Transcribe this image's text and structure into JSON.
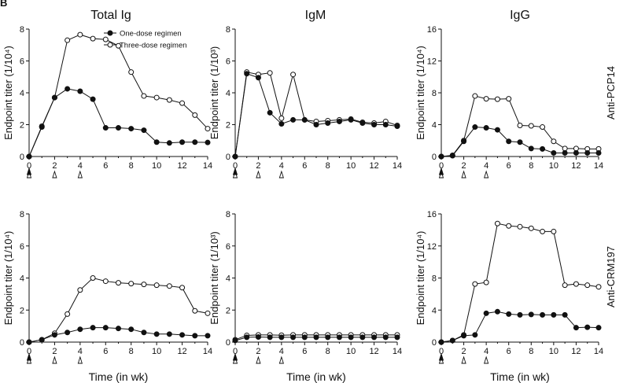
{
  "figure_letter": "B",
  "chart_data": {
    "type": "line",
    "x": [
      0,
      1,
      2,
      3,
      4,
      5,
      6,
      7,
      8,
      9,
      10,
      11,
      12,
      13,
      14
    ],
    "xticks": [
      0,
      2,
      4,
      6,
      8,
      10,
      12,
      14
    ],
    "xlabel": "Time (in wk)",
    "xlim": [
      0,
      14
    ],
    "column_titles": [
      "Total Ig",
      "IgM",
      "IgG"
    ],
    "row_labels": [
      "Anti-PCP14",
      "Anti-CRM197"
    ],
    "legend": [
      "One-dose regimen",
      "Three-dose regimen"
    ],
    "dose_markers": {
      "one_dose_weeks": [
        0
      ],
      "three_dose_weeks": [
        0,
        2,
        4
      ]
    },
    "panels": [
      {
        "row": 0,
        "col": 0,
        "ylabel": "Endpoint titer (1/10⁴)",
        "ylim": [
          0,
          8
        ],
        "yticks": [
          0,
          2,
          4,
          6,
          8
        ],
        "series": [
          {
            "name": "One-dose regimen",
            "values": [
              0,
              1.85,
              3.7,
              4.25,
              4.1,
              3.6,
              1.8,
              1.8,
              1.75,
              1.65,
              0.9,
              0.85,
              0.9,
              0.9,
              0.88
            ]
          },
          {
            "name": "Three-dose regimen",
            "values": [
              0,
              1.9,
              3.7,
              7.3,
              7.65,
              7.4,
              7.35,
              6.95,
              5.3,
              3.8,
              3.7,
              3.55,
              3.35,
              2.6,
              1.75
            ]
          }
        ]
      },
      {
        "row": 0,
        "col": 1,
        "ylabel": "Endpoint titer (1/10³)",
        "ylim": [
          0,
          8
        ],
        "yticks": [
          0,
          2,
          4,
          6,
          8
        ],
        "series": [
          {
            "name": "One-dose regimen",
            "values": [
              0,
              5.2,
              4.95,
              2.75,
              2.05,
              2.3,
              2.3,
              2.0,
              2.1,
              2.2,
              2.3,
              2.1,
              2.0,
              2.0,
              1.9
            ]
          },
          {
            "name": "Three-dose regimen",
            "values": [
              0,
              5.3,
              5.15,
              5.25,
              2.4,
              5.15,
              2.3,
              2.2,
              2.25,
              2.3,
              2.35,
              2.15,
              2.1,
              2.2,
              1.95
            ]
          }
        ]
      },
      {
        "row": 0,
        "col": 2,
        "ylabel": "Endpoint titer (1/10⁴)",
        "ylim": [
          0,
          16
        ],
        "yticks": [
          0,
          4,
          8,
          12,
          16
        ],
        "series": [
          {
            "name": "One-dose regimen",
            "values": [
              0,
              0.1,
              1.9,
              3.7,
              3.6,
              3.35,
              1.9,
              1.8,
              1.0,
              0.95,
              0.45,
              0.45,
              0.45,
              0.45,
              0.45
            ]
          },
          {
            "name": "Three-dose regimen",
            "values": [
              0,
              0.15,
              2.0,
              7.6,
              7.25,
              7.2,
              7.25,
              3.9,
              3.85,
              3.7,
              1.9,
              1.0,
              1.0,
              0.95,
              0.95
            ]
          }
        ]
      },
      {
        "row": 1,
        "col": 0,
        "ylabel": "Endpoint titer (1/10⁴)",
        "ylim": [
          0,
          8
        ],
        "yticks": [
          0,
          2,
          4,
          6,
          8
        ],
        "series": [
          {
            "name": "One-dose regimen",
            "values": [
              0,
              0.15,
              0.45,
              0.6,
              0.8,
              0.9,
              0.9,
              0.85,
              0.8,
              0.6,
              0.5,
              0.5,
              0.45,
              0.4,
              0.4
            ]
          },
          {
            "name": "Three-dose regimen",
            "values": [
              0,
              0.15,
              0.55,
              1.75,
              3.25,
              4.0,
              3.8,
              3.7,
              3.65,
              3.6,
              3.55,
              3.5,
              3.4,
              1.95,
              1.8
            ]
          }
        ]
      },
      {
        "row": 1,
        "col": 1,
        "ylabel": "Endpoint titer (1/10³)",
        "ylim": [
          0,
          8
        ],
        "yticks": [
          0,
          2,
          4,
          6,
          8
        ],
        "series": [
          {
            "name": "One-dose regimen",
            "values": [
              0.1,
              0.3,
              0.32,
              0.3,
              0.3,
              0.3,
              0.3,
              0.3,
              0.3,
              0.3,
              0.3,
              0.3,
              0.3,
              0.3,
              0.3
            ]
          },
          {
            "name": "Three-dose regimen",
            "values": [
              0.15,
              0.42,
              0.45,
              0.45,
              0.43,
              0.45,
              0.45,
              0.45,
              0.45,
              0.45,
              0.45,
              0.45,
              0.45,
              0.45,
              0.45
            ]
          }
        ]
      },
      {
        "row": 1,
        "col": 2,
        "ylabel": "Endpoint titer (1/10⁴)",
        "ylim": [
          0,
          16
        ],
        "yticks": [
          0,
          4,
          8,
          12,
          16
        ],
        "series": [
          {
            "name": "One-dose regimen",
            "values": [
              0,
              0.2,
              0.8,
              0.9,
              3.6,
              3.8,
              3.5,
              3.4,
              3.45,
              3.4,
              3.4,
              3.4,
              1.8,
              1.85,
              1.8
            ]
          },
          {
            "name": "Three-dose regimen",
            "values": [
              0,
              0.2,
              0.9,
              7.25,
              7.45,
              14.8,
              14.5,
              14.4,
              14.2,
              13.8,
              13.8,
              7.1,
              7.25,
              7.1,
              6.9
            ]
          }
        ]
      }
    ]
  }
}
